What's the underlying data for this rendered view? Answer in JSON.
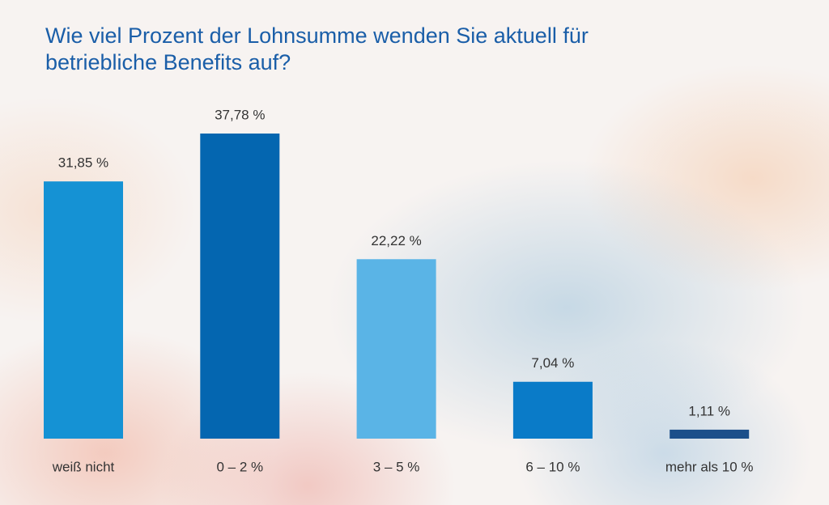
{
  "chart_data": {
    "type": "bar",
    "title": "Wie viel Prozent der Lohnsumme wenden Sie aktuell für betriebliche Benefits auf?",
    "categories": [
      "weiß nicht",
      "0 – 2 %",
      "3 – 5 %",
      "6 – 10 %",
      "mehr als 10 %"
    ],
    "values": [
      31.85,
      37.78,
      22.22,
      7.04,
      1.11
    ],
    "value_labels": [
      "31,85 %",
      "37,78 %",
      "22,22 %",
      "7,04 %",
      "1,11 %"
    ],
    "colors": [
      "#1592d4",
      "#0466b0",
      "#5ab4e6",
      "#0a7bc8",
      "#1c4f8a"
    ]
  }
}
